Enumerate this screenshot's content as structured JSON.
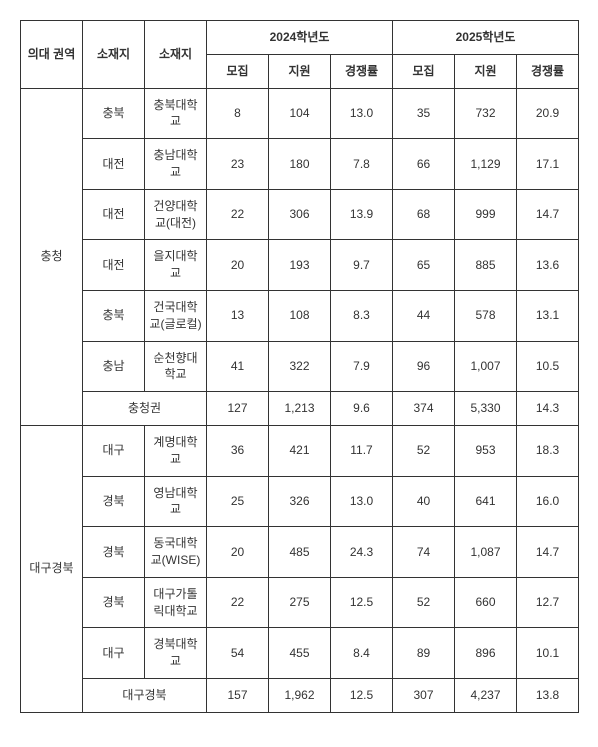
{
  "headers": {
    "region": "의대\n권역",
    "location": "소재지",
    "university": "소재지",
    "year2024": "2024학년도",
    "year2025": "2025학년도",
    "recruit": "모집",
    "apply": "지원",
    "ratio": "경쟁률"
  },
  "groups": [
    {
      "region": "충청",
      "rows": [
        {
          "loc": "충북",
          "univ": "충북대학교",
          "r24": "8",
          "a24": "104",
          "t24": "13.0",
          "r25": "35",
          "a25": "732",
          "t25": "20.9"
        },
        {
          "loc": "대전",
          "univ": "충남대학교",
          "r24": "23",
          "a24": "180",
          "t24": "7.8",
          "r25": "66",
          "a25": "1,129",
          "t25": "17.1"
        },
        {
          "loc": "대전",
          "univ": "건양대학교(대전)",
          "r24": "22",
          "a24": "306",
          "t24": "13.9",
          "r25": "68",
          "a25": "999",
          "t25": "14.7"
        },
        {
          "loc": "대전",
          "univ": "을지대학교",
          "r24": "20",
          "a24": "193",
          "t24": "9.7",
          "r25": "65",
          "a25": "885",
          "t25": "13.6"
        },
        {
          "loc": "충북",
          "univ": "건국대학교(글로컬)",
          "r24": "13",
          "a24": "108",
          "t24": "8.3",
          "r25": "44",
          "a25": "578",
          "t25": "13.1"
        },
        {
          "loc": "충남",
          "univ": "순천향대학교",
          "r24": "41",
          "a24": "322",
          "t24": "7.9",
          "r25": "96",
          "a25": "1,007",
          "t25": "10.5"
        }
      ],
      "subtotal": {
        "label": "충청권",
        "r24": "127",
        "a24": "1,213",
        "t24": "9.6",
        "r25": "374",
        "a25": "5,330",
        "t25": "14.3"
      }
    },
    {
      "region": "대구경북",
      "rows": [
        {
          "loc": "대구",
          "univ": "계명대학교",
          "r24": "36",
          "a24": "421",
          "t24": "11.7",
          "r25": "52",
          "a25": "953",
          "t25": "18.3"
        },
        {
          "loc": "경북",
          "univ": "영남대학교",
          "r24": "25",
          "a24": "326",
          "t24": "13.0",
          "r25": "40",
          "a25": "641",
          "t25": "16.0"
        },
        {
          "loc": "경북",
          "univ": "동국대학교(WISE)",
          "r24": "20",
          "a24": "485",
          "t24": "24.3",
          "r25": "74",
          "a25": "1,087",
          "t25": "14.7"
        },
        {
          "loc": "경북",
          "univ": "대구가톨릭대학교",
          "r24": "22",
          "a24": "275",
          "t24": "12.5",
          "r25": "52",
          "a25": "660",
          "t25": "12.7"
        },
        {
          "loc": "대구",
          "univ": "경북대학교",
          "r24": "54",
          "a24": "455",
          "t24": "8.4",
          "r25": "89",
          "a25": "896",
          "t25": "10.1"
        }
      ],
      "subtotal": {
        "label": "대구경북",
        "r24": "157",
        "a24": "1,962",
        "t24": "12.5",
        "r25": "307",
        "a25": "4,237",
        "t25": "13.8"
      }
    }
  ]
}
